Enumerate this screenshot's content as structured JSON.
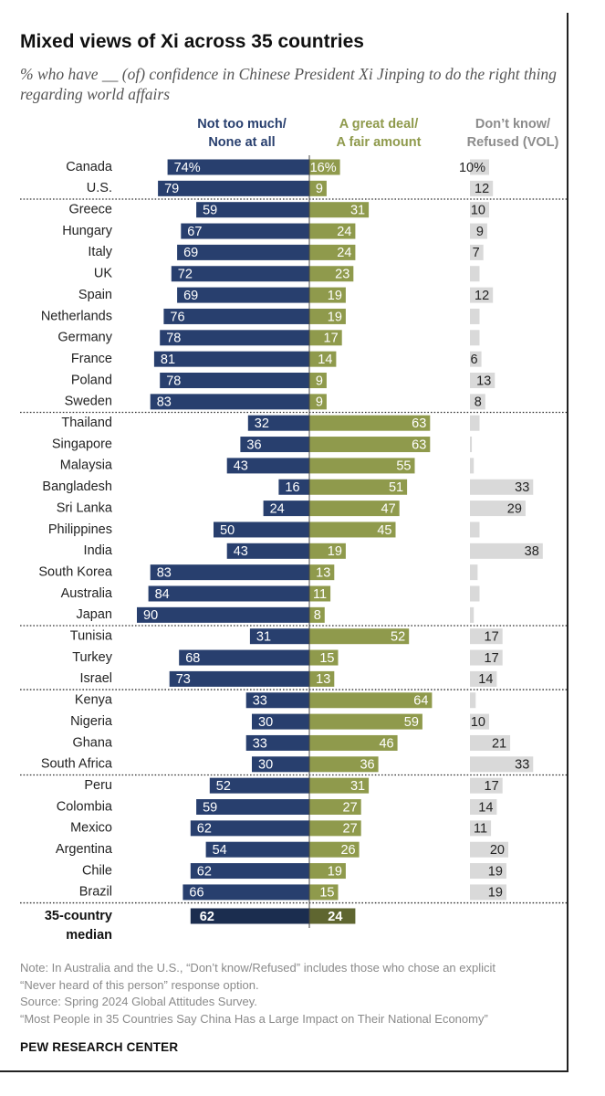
{
  "title": "Mixed views of Xi across 35 countries",
  "subtitle": "% who have __ (of) confidence in Chinese President Xi Jinping to do the right thing regarding world affairs",
  "columns": {
    "no_conf": {
      "line1": "Not too much/",
      "line2": "None at all"
    },
    "conf": {
      "line1": "A great deal/",
      "line2": "A fair amount"
    },
    "dk": {
      "line1": "Don’t know/",
      "line2": "Refused (VOL)"
    }
  },
  "colors": {
    "no_conf": "#283f6e",
    "conf": "#8f9a4c",
    "dk": "#d9d9d9",
    "median_no_conf": "#1b2d4f",
    "median_conf": "#5f6630"
  },
  "chart_data": {
    "type": "bar",
    "orientation": "horizontal diverging",
    "series": [
      {
        "name": "Not too much/None at all"
      },
      {
        "name": "A great deal/A fair amount"
      },
      {
        "name": "Don’t know/Refused (VOL)"
      }
    ],
    "groups": [
      {
        "rows": [
          {
            "country": "Canada",
            "no_conf": 74,
            "conf": 16,
            "dk": 10,
            "no_conf_label": "74%",
            "conf_label": "16%",
            "dk_label": "10%"
          },
          {
            "country": "U.S.",
            "no_conf": 79,
            "conf": 9,
            "dk": 12
          }
        ]
      },
      {
        "rows": [
          {
            "country": "Greece",
            "no_conf": 59,
            "conf": 31,
            "dk": 10
          },
          {
            "country": "Hungary",
            "no_conf": 67,
            "conf": 24,
            "dk": 9
          },
          {
            "country": "Italy",
            "no_conf": 69,
            "conf": 24,
            "dk": 7
          },
          {
            "country": "UK",
            "no_conf": 72,
            "conf": 23,
            "dk": 5,
            "dk_label": ""
          },
          {
            "country": "Spain",
            "no_conf": 69,
            "conf": 19,
            "dk": 12
          },
          {
            "country": "Netherlands",
            "no_conf": 76,
            "conf": 19,
            "dk": 5,
            "dk_label": ""
          },
          {
            "country": "Germany",
            "no_conf": 78,
            "conf": 17,
            "dk": 5,
            "dk_label": ""
          },
          {
            "country": "France",
            "no_conf": 81,
            "conf": 14,
            "dk": 6
          },
          {
            "country": "Poland",
            "no_conf": 78,
            "conf": 9,
            "dk": 13
          },
          {
            "country": "Sweden",
            "no_conf": 83,
            "conf": 9,
            "dk": 8
          }
        ]
      },
      {
        "rows": [
          {
            "country": "Thailand",
            "no_conf": 32,
            "conf": 63,
            "dk": 5,
            "dk_label": ""
          },
          {
            "country": "Singapore",
            "no_conf": 36,
            "conf": 63,
            "dk": 1,
            "dk_label": ""
          },
          {
            "country": "Malaysia",
            "no_conf": 43,
            "conf": 55,
            "dk": 2,
            "dk_label": ""
          },
          {
            "country": "Bangladesh",
            "no_conf": 16,
            "conf": 51,
            "dk": 33
          },
          {
            "country": "Sri Lanka",
            "no_conf": 24,
            "conf": 47,
            "dk": 29
          },
          {
            "country": "Philippines",
            "no_conf": 50,
            "conf": 45,
            "dk": 5,
            "dk_label": ""
          },
          {
            "country": "India",
            "no_conf": 43,
            "conf": 19,
            "dk": 38
          },
          {
            "country": "South Korea",
            "no_conf": 83,
            "conf": 13,
            "dk": 4,
            "dk_label": ""
          },
          {
            "country": "Australia",
            "no_conf": 84,
            "conf": 11,
            "dk": 5,
            "dk_label": ""
          },
          {
            "country": "Japan",
            "no_conf": 90,
            "conf": 8,
            "dk": 2,
            "dk_label": ""
          }
        ]
      },
      {
        "rows": [
          {
            "country": "Tunisia",
            "no_conf": 31,
            "conf": 52,
            "dk": 17
          },
          {
            "country": "Turkey",
            "no_conf": 68,
            "conf": 15,
            "dk": 17
          },
          {
            "country": "Israel",
            "no_conf": 73,
            "conf": 13,
            "dk": 14
          }
        ]
      },
      {
        "rows": [
          {
            "country": "Kenya",
            "no_conf": 33,
            "conf": 64,
            "dk": 3,
            "dk_label": ""
          },
          {
            "country": "Nigeria",
            "no_conf": 30,
            "conf": 59,
            "dk": 10
          },
          {
            "country": "Ghana",
            "no_conf": 33,
            "conf": 46,
            "dk": 21
          },
          {
            "country": "South Africa",
            "no_conf": 30,
            "conf": 36,
            "dk": 33
          }
        ]
      },
      {
        "rows": [
          {
            "country": "Peru",
            "no_conf": 52,
            "conf": 31,
            "dk": 17
          },
          {
            "country": "Colombia",
            "no_conf": 59,
            "conf": 27,
            "dk": 14
          },
          {
            "country": "Mexico",
            "no_conf": 62,
            "conf": 27,
            "dk": 11
          },
          {
            "country": "Argentina",
            "no_conf": 54,
            "conf": 26,
            "dk": 20
          },
          {
            "country": "Chile",
            "no_conf": 62,
            "conf": 19,
            "dk": 19
          },
          {
            "country": "Brazil",
            "no_conf": 66,
            "conf": 15,
            "dk": 19
          }
        ]
      }
    ],
    "median": {
      "label_line1": "35-country",
      "label_line2": "median",
      "no_conf": 62,
      "conf": 24
    }
  },
  "footnote": {
    "line1": "Note: In Australia and the U.S., “Don’t know/Refused” includes those who chose an explicit",
    "line2": "“Never heard of this person” response option.",
    "line3": "Source: Spring 2024 Global Attitudes Survey.",
    "line4": "“Most People in 35 Countries Say China Has a Large Impact on Their National Economy”"
  },
  "brand": "PEW RESEARCH CENTER"
}
